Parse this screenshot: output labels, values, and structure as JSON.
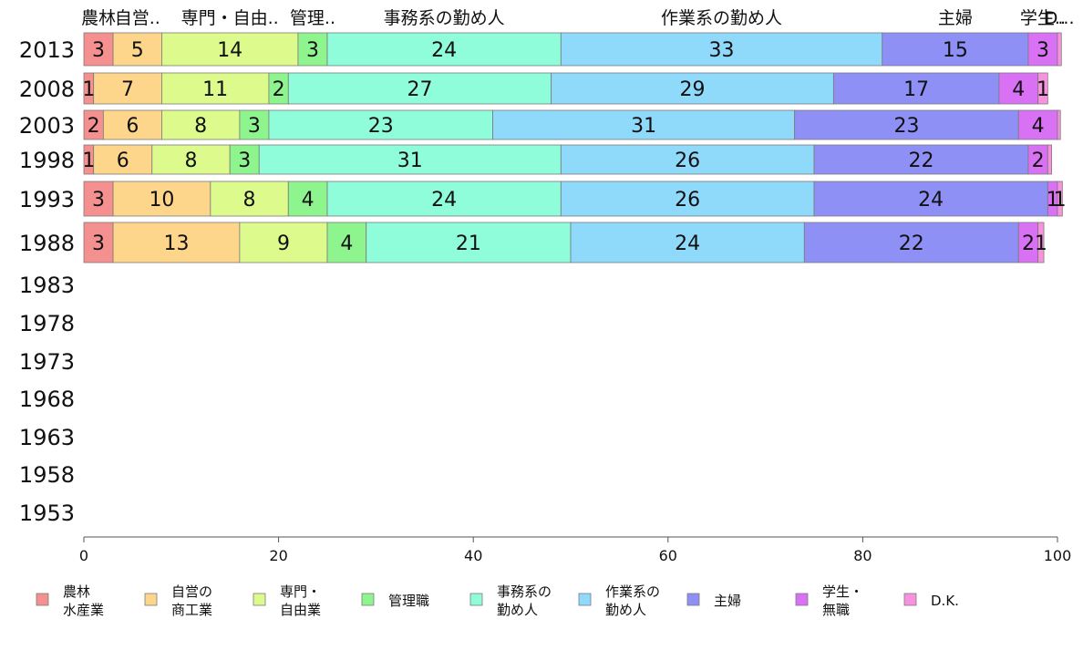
{
  "chart_data": {
    "type": "bar",
    "orientation": "horizontal",
    "stacked": true,
    "categories": [
      "2013",
      "2008",
      "2003",
      "1998",
      "1993",
      "1988",
      "1983",
      "1978",
      "1973",
      "1968",
      "1963",
      "1958",
      "1953"
    ],
    "xlim": [
      0,
      100
    ],
    "xticks": [
      0,
      20,
      40,
      60,
      80,
      100
    ],
    "top_labels": [
      "農林",
      "自営..",
      "専門・自由..",
      "管理..",
      "事務系の勤め人",
      "作業系の勤め人",
      "主婦",
      "学生..",
      "D..."
    ],
    "series": [
      {
        "name": "農林\n水産業",
        "color": "#f59090",
        "values": [
          3,
          1,
          2,
          1,
          3,
          3,
          null,
          null,
          null,
          null,
          null,
          null,
          null
        ],
        "labels": [
          "3",
          "1",
          "2",
          "1",
          "3",
          "3"
        ]
      },
      {
        "name": "自営の\n商工業",
        "color": "#fdd68c",
        "values": [
          5,
          7,
          6,
          6,
          10,
          13,
          null,
          null,
          null,
          null,
          null,
          null,
          null
        ],
        "labels": [
          "5",
          "7",
          "6",
          "6",
          "10",
          "13"
        ]
      },
      {
        "name": "専門・\n自由業",
        "color": "#dcfb8c",
        "values": [
          14,
          11,
          8,
          8,
          8,
          9,
          null,
          null,
          null,
          null,
          null,
          null,
          null
        ],
        "labels": [
          "14",
          "11",
          "8",
          "8",
          "8",
          "9"
        ]
      },
      {
        "name": "管理職",
        "color": "#8ef58e",
        "values": [
          3,
          2,
          3,
          3,
          4,
          4,
          null,
          null,
          null,
          null,
          null,
          null,
          null
        ],
        "labels": [
          "3",
          "2",
          "3",
          "3",
          "4",
          "4"
        ]
      },
      {
        "name": "事務系の\n勤め人",
        "color": "#8ffcda",
        "values": [
          24,
          27,
          23,
          31,
          24,
          21,
          null,
          null,
          null,
          null,
          null,
          null,
          null
        ],
        "labels": [
          "24",
          "27",
          "23",
          "31",
          "24",
          "21"
        ]
      },
      {
        "name": "作業系の\n勤め人",
        "color": "#8fd9fb",
        "values": [
          33,
          29,
          31,
          26,
          26,
          24,
          null,
          null,
          null,
          null,
          null,
          null,
          null
        ],
        "labels": [
          "33",
          "29",
          "31",
          "26",
          "26",
          "24"
        ]
      },
      {
        "name": "主婦",
        "color": "#8e90f5",
        "values": [
          15,
          17,
          23,
          22,
          24,
          22,
          null,
          null,
          null,
          null,
          null,
          null,
          null
        ],
        "labels": [
          "15",
          "17",
          "23",
          "22",
          "24",
          "22"
        ]
      },
      {
        "name": "学生・\n無職",
        "color": "#d971f5",
        "values": [
          3,
          4,
          4,
          2,
          1,
          2,
          null,
          null,
          null,
          null,
          null,
          null,
          null
        ],
        "labels": [
          "3",
          "4",
          "4",
          "2",
          "1",
          "2"
        ]
      },
      {
        "name": "D.K.",
        "color": "#f992de",
        "values": [
          0.4,
          1,
          0.3,
          0.4,
          0.5,
          0.6,
          null,
          null,
          null,
          null,
          null,
          null,
          null
        ],
        "labels": [
          "",
          "1",
          "",
          "",
          "1",
          "1"
        ]
      }
    ],
    "legend_position": "bottom",
    "grid": false
  }
}
